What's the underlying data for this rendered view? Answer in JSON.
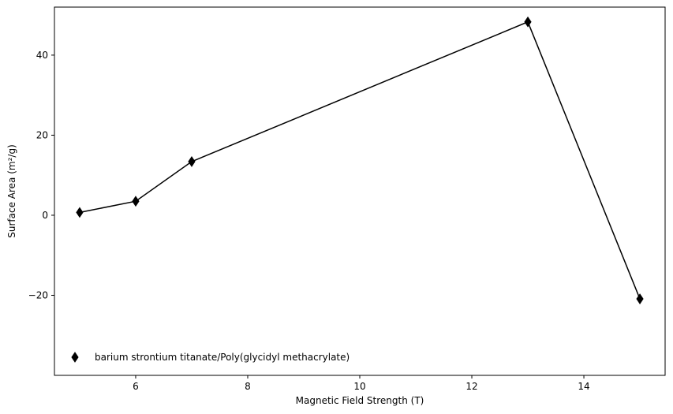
{
  "chart_data": {
    "type": "line",
    "title": "",
    "xlabel": "Magnetic Field Strength (T)",
    "ylabel": "Surface Area (m²/g)",
    "xlim": [
      4.55,
      15.45
    ],
    "ylim": [
      -40.0,
      52.0
    ],
    "xticks": [
      6,
      8,
      10,
      12,
      14
    ],
    "xtick_labels": [
      "6",
      "8",
      "10",
      "12",
      "14"
    ],
    "yticks": [
      -20,
      0,
      20,
      40
    ],
    "ytick_labels": [
      "−20",
      "0",
      "20",
      "40"
    ],
    "grid": false,
    "legend_position": "lower-left",
    "series": [
      {
        "name": "barium strontium titanate/Poly(glycidyl methacrylate)",
        "marker": "thin-diamond",
        "color": "#000000",
        "x": [
          5,
          6,
          7,
          13,
          15
        ],
        "y": [
          0.7,
          3.5,
          13.4,
          48.3,
          -20.9
        ]
      }
    ]
  }
}
